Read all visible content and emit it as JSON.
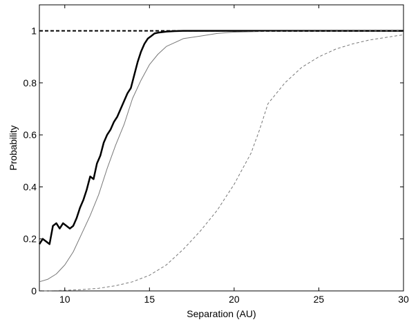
{
  "chart_data": {
    "type": "line",
    "title": "",
    "xlabel": "Separation (AU)",
    "ylabel": "Probability",
    "xlim": [
      8.5,
      30
    ],
    "ylim": [
      0,
      1.1
    ],
    "xticks": [
      10,
      15,
      20,
      25,
      30
    ],
    "yticks": [
      0,
      0.2,
      0.4,
      0.6,
      0.8,
      1
    ],
    "xtick_labels": [
      "10",
      "15",
      "20",
      "25",
      "30"
    ],
    "ytick_labels": [
      "0",
      "0.2",
      "0.4",
      "0.6",
      "0.8",
      "1"
    ],
    "grid": false,
    "legend": "none",
    "series": [
      {
        "style": "thick-solid",
        "color": "#000000",
        "x": [
          8.5,
          8.7,
          8.9,
          9.1,
          9.3,
          9.5,
          9.7,
          9.9,
          10.1,
          10.3,
          10.5,
          10.7,
          10.9,
          11.1,
          11.3,
          11.5,
          11.7,
          11.9,
          12.1,
          12.3,
          12.5,
          12.7,
          12.9,
          13.1,
          13.3,
          13.5,
          13.7,
          13.9,
          14.1,
          14.3,
          14.5,
          14.7,
          14.9,
          15.1,
          15.3,
          15.5,
          16.0,
          16.5,
          17.0,
          18.0,
          20.0,
          25.0,
          30.0
        ],
        "y": [
          0.18,
          0.2,
          0.19,
          0.18,
          0.25,
          0.26,
          0.24,
          0.26,
          0.25,
          0.24,
          0.25,
          0.28,
          0.32,
          0.35,
          0.39,
          0.44,
          0.43,
          0.49,
          0.52,
          0.57,
          0.6,
          0.62,
          0.65,
          0.67,
          0.7,
          0.73,
          0.76,
          0.78,
          0.83,
          0.88,
          0.92,
          0.95,
          0.97,
          0.98,
          0.99,
          0.993,
          0.997,
          0.999,
          1.0,
          1.0,
          1.0,
          1.0,
          1.0
        ]
      },
      {
        "style": "thin-solid",
        "color": "#777777",
        "x": [
          8.5,
          9.0,
          9.5,
          10.0,
          10.5,
          11.0,
          11.5,
          12.0,
          12.5,
          13.0,
          13.5,
          14.0,
          14.5,
          15.0,
          15.5,
          16.0,
          16.5,
          17.0,
          18.0,
          19.0,
          20.0,
          22.0,
          25.0,
          30.0
        ],
        "y": [
          0.035,
          0.045,
          0.065,
          0.1,
          0.15,
          0.22,
          0.29,
          0.37,
          0.47,
          0.56,
          0.64,
          0.74,
          0.81,
          0.87,
          0.91,
          0.94,
          0.955,
          0.97,
          0.98,
          0.99,
          0.995,
          0.998,
          0.999,
          1.0
        ]
      },
      {
        "style": "dashed",
        "color": "#777777",
        "x": [
          8.5,
          10.0,
          11.0,
          12.0,
          13.0,
          14.0,
          15.0,
          16.0,
          17.0,
          18.0,
          19.0,
          19.5,
          20.0,
          20.5,
          21.0,
          21.5,
          22.0,
          23.0,
          24.0,
          25.0,
          26.0,
          27.0,
          28.0,
          29.0,
          30.0
        ],
        "y": [
          0.0,
          0.002,
          0.005,
          0.01,
          0.02,
          0.035,
          0.06,
          0.1,
          0.16,
          0.23,
          0.31,
          0.36,
          0.41,
          0.47,
          0.53,
          0.62,
          0.72,
          0.8,
          0.86,
          0.9,
          0.93,
          0.95,
          0.965,
          0.975,
          0.985
        ]
      },
      {
        "style": "reference-dashed",
        "color": "#000000",
        "x": [
          8.5,
          30.0
        ],
        "y": [
          1.0,
          1.0
        ]
      }
    ]
  }
}
